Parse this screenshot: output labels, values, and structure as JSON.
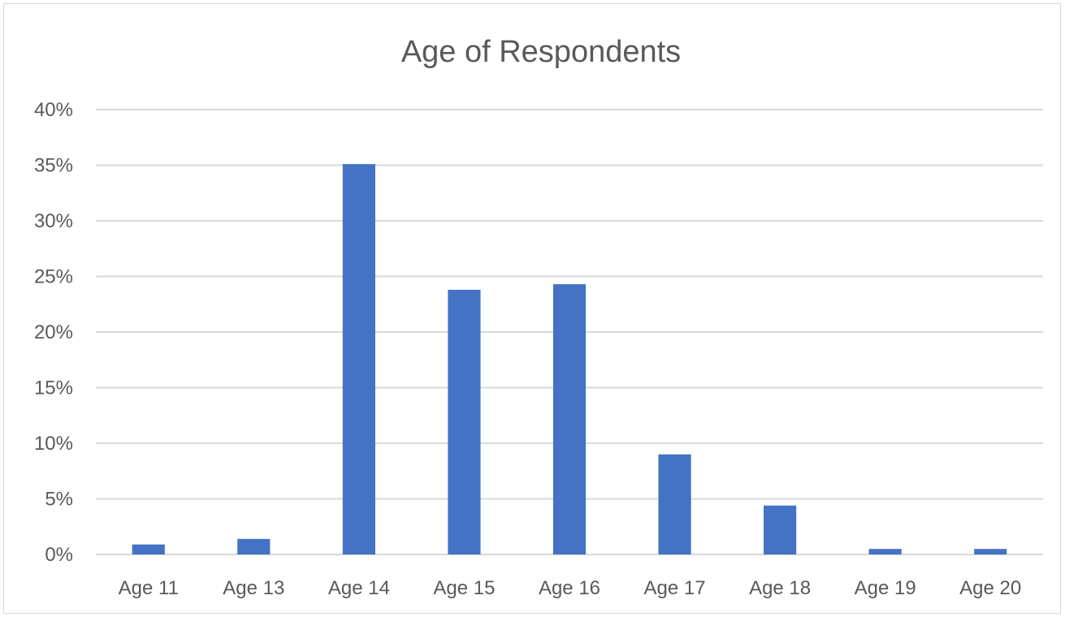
{
  "chart_data": {
    "type": "bar",
    "title": "Age of Respondents",
    "xlabel": "",
    "ylabel": "",
    "categories": [
      "Age 11",
      "Age 13",
      "Age 14",
      "Age 15",
      "Age 16",
      "Age 17",
      "Age 18",
      "Age 19",
      "Age 20"
    ],
    "values": [
      0.9,
      1.4,
      35.1,
      23.8,
      24.3,
      9.0,
      4.4,
      0.5,
      0.5
    ],
    "unit": "%",
    "ylim": [
      0,
      40
    ],
    "yticks": [
      0,
      5,
      10,
      15,
      20,
      25,
      30,
      35,
      40
    ],
    "ytick_labels": [
      "0%",
      "5%",
      "10%",
      "15%",
      "20%",
      "25%",
      "30%",
      "35%",
      "40%"
    ],
    "grid": true,
    "legend": "none",
    "bar_color": "#4472c4"
  }
}
